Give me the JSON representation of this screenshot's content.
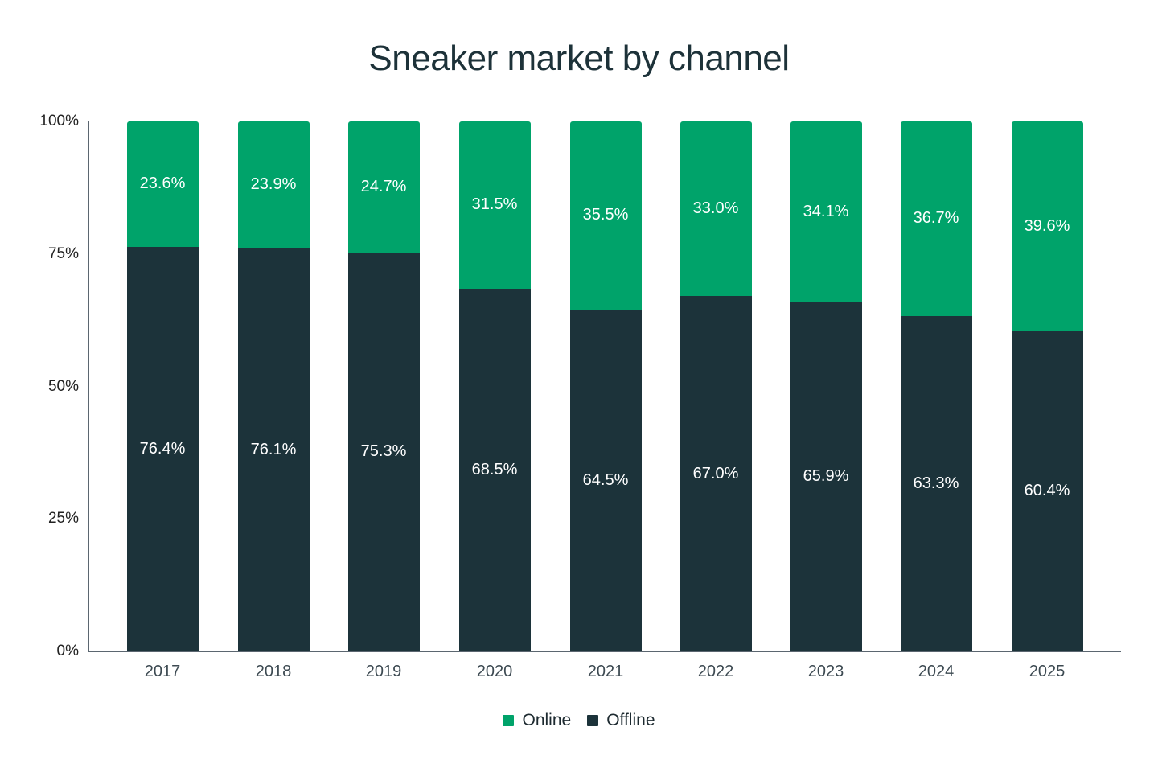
{
  "chart_data": {
    "type": "bar",
    "stacked": true,
    "title": "Sneaker market by channel",
    "xlabel": "",
    "ylabel": "",
    "ylim": [
      0,
      100
    ],
    "yticks": [
      "0%",
      "25%",
      "50%",
      "75%",
      "100%"
    ],
    "categories": [
      "2017",
      "2018",
      "2019",
      "2020",
      "2021",
      "2022",
      "2023",
      "2024",
      "2025"
    ],
    "series": [
      {
        "name": "Offline",
        "color": "#1c333a",
        "values": [
          76.4,
          76.1,
          75.3,
          68.5,
          64.5,
          67.0,
          65.9,
          63.3,
          60.4
        ],
        "labels": [
          "76.4%",
          "76.1%",
          "75.3%",
          "68.5%",
          "64.5%",
          "67.0%",
          "65.9%",
          "63.3%",
          "60.4%"
        ]
      },
      {
        "name": "Online",
        "color": "#00a36a",
        "values": [
          23.6,
          23.9,
          24.7,
          31.5,
          35.5,
          33.0,
          34.1,
          36.7,
          39.6
        ],
        "labels": [
          "23.6%",
          "23.9%",
          "24.7%",
          "31.5%",
          "35.5%",
          "33.0%",
          "34.1%",
          "36.7%",
          "39.6%"
        ]
      }
    ],
    "legend": {
      "position": "bottom",
      "entries": [
        "Online",
        "Offline"
      ]
    },
    "grid": false
  },
  "title": "Sneaker market by channel",
  "legend": {
    "online": "Online",
    "offline": "Offline"
  }
}
